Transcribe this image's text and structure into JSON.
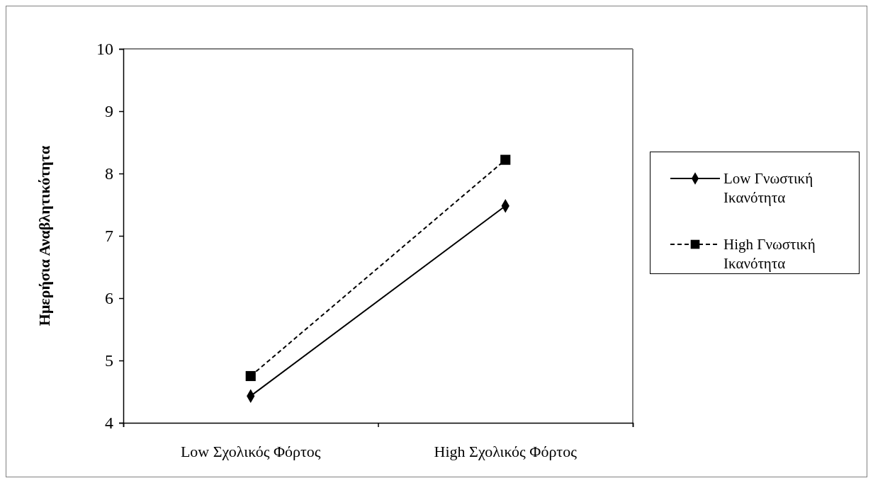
{
  "chart_data": {
    "type": "line",
    "ylabel": "Ημερήσια Αναβλητικότητα",
    "categories": [
      "Low Σχολικός Φόρτος",
      "High Σχολικός Φόρτος"
    ],
    "ylim": [
      4,
      10
    ],
    "yticks": [
      4,
      5,
      6,
      7,
      8,
      9,
      10
    ],
    "grid": false,
    "legend": "right",
    "series": [
      {
        "name": "Low Γνωστική Ικανότητα",
        "color": "#000000",
        "marker": "diamond",
        "line_style": "solid",
        "values": [
          4.43,
          7.48
        ]
      },
      {
        "name": "High Γνωστική Ικανότητα",
        "color": "#000000",
        "marker": "square",
        "line_style": "dashed",
        "values": [
          4.75,
          8.22
        ]
      }
    ]
  }
}
